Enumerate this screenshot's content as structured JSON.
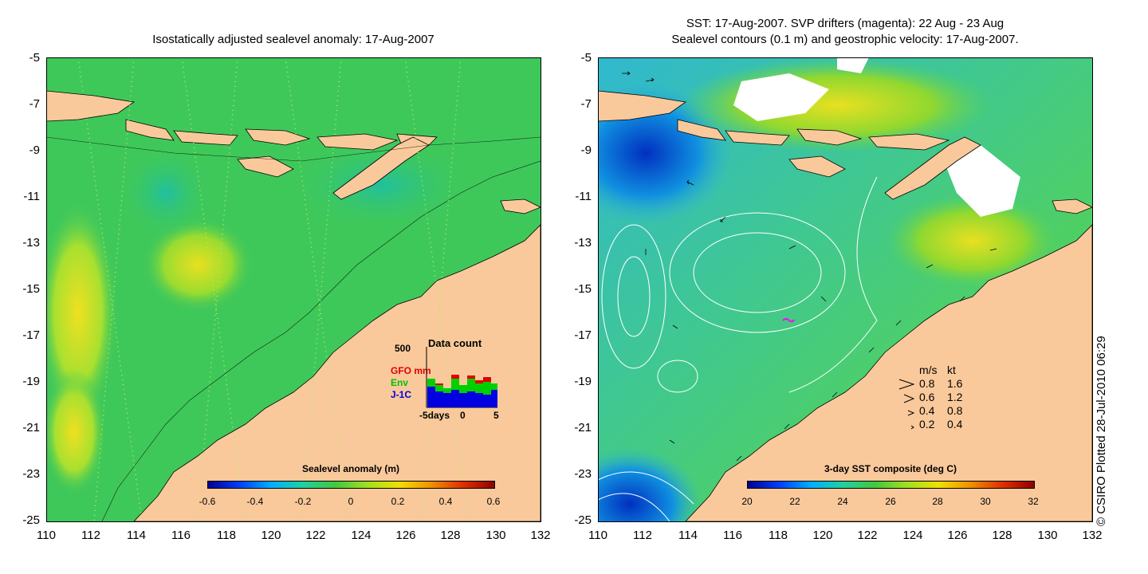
{
  "left_panel": {
    "title": "Isostatically adjusted sealevel anomaly: 17-Aug-2007",
    "y_ticks": [
      "-5",
      "-7",
      "-9",
      "-11",
      "-13",
      "-15",
      "-17",
      "-19",
      "-21",
      "-23",
      "-25"
    ],
    "x_ticks": [
      "110",
      "112",
      "114",
      "116",
      "118",
      "120",
      "122",
      "124",
      "126",
      "128",
      "130",
      "132"
    ],
    "colorbar": {
      "label": "Sealevel anomaly (m)",
      "ticks": [
        "-0.6",
        "-0.4",
        "-0.2",
        "0",
        "0.2",
        "0.4",
        "0.6"
      ]
    },
    "data_count": {
      "ymax_label": "500",
      "title": "Data count",
      "series": [
        {
          "name": "GFO mm",
          "color": "#e00000"
        },
        {
          "name": "Env",
          "color": "#00d000"
        },
        {
          "name": "J-1C",
          "color": "#0000e0"
        }
      ],
      "x_labels": [
        "-5days",
        "0",
        "5"
      ]
    }
  },
  "right_panel": {
    "title_line1": "SST: 17-Aug-2007. SVP drifters (magenta): 22 Aug - 23 Aug",
    "title_line2": "Sealevel contours (0.1 m) and geostrophic velocity: 17-Aug-2007.",
    "y_ticks": [
      "-5",
      "-7",
      "-9",
      "-11",
      "-13",
      "-15",
      "-17",
      "-19",
      "-21",
      "-23",
      "-25"
    ],
    "x_ticks": [
      "110",
      "112",
      "114",
      "116",
      "118",
      "120",
      "122",
      "124",
      "126",
      "128",
      "130",
      "132"
    ],
    "colorbar": {
      "label": "3-day SST composite (deg C)",
      "ticks": [
        "20",
        "22",
        "24",
        "26",
        "28",
        "30",
        "32"
      ]
    },
    "velocity_legend": {
      "header_ms": "m/s",
      "header_kt": "kt",
      "rows": [
        {
          "ms": "0.8",
          "kt": "1.6"
        },
        {
          "ms": "0.6",
          "kt": "1.2"
        },
        {
          "ms": "0.4",
          "kt": "0.8"
        },
        {
          "ms": "0.2",
          "kt": "0.4"
        }
      ]
    }
  },
  "credit": "© CSIRO Plotted 28-Jul-2010 06:29",
  "colors": {
    "land": "#f9c99b",
    "ocean_left": "#3fc85a",
    "ocean_right": "#3cc48c"
  }
}
